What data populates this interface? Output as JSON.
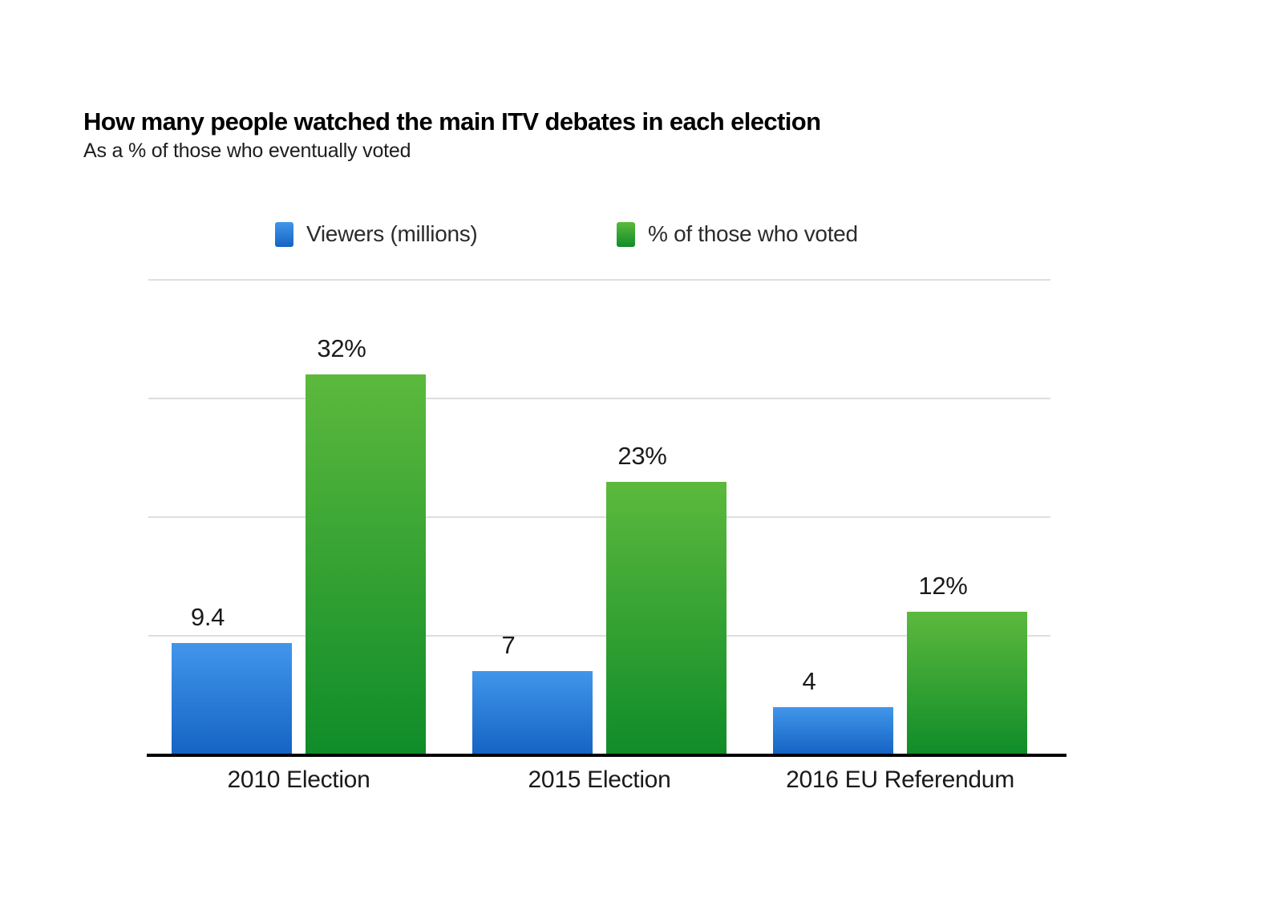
{
  "page": {
    "background": "#ffffff"
  },
  "header": {
    "title": "How many people watched the main ITV debates in each election",
    "subtitle": "As a % of those who eventually voted"
  },
  "legend": {
    "items": [
      {
        "label": "Viewers (millions)",
        "color_top": "#4196ea",
        "color_bottom": "#1563c4"
      },
      {
        "label": "% of those who voted",
        "color_top": "#5cb93d",
        "color_bottom": "#0f8c29"
      }
    ]
  },
  "chart_data": {
    "type": "bar",
    "title": "How many people watched the main ITV debates in each election",
    "subtitle": "As a % of those who eventually voted",
    "categories": [
      "2010 Election",
      "2015 Election",
      "2016 EU Referendum"
    ],
    "series": [
      {
        "name": "Viewers (millions)",
        "values": [
          9.4,
          7,
          4
        ],
        "value_labels": [
          "9.4",
          "7",
          "4"
        ],
        "color_top": "#4196ea",
        "color_bottom": "#1563c4"
      },
      {
        "name": "% of those who voted",
        "values": [
          32,
          23,
          12
        ],
        "value_labels": [
          "32%",
          "23%",
          "12%"
        ],
        "color_top": "#5cb93d",
        "color_bottom": "#0f8c29"
      }
    ],
    "ylim": [
      0,
      40
    ],
    "gridline_values": [
      10,
      20,
      30,
      40
    ],
    "grid": true,
    "legend_position": "top",
    "y_axis_tick_labels_visible": false,
    "x_axis_line_color": "#000000"
  },
  "colors": {
    "gridline": "#dedede",
    "axis_line": "#000000",
    "label_text": "#1a1a1a"
  }
}
